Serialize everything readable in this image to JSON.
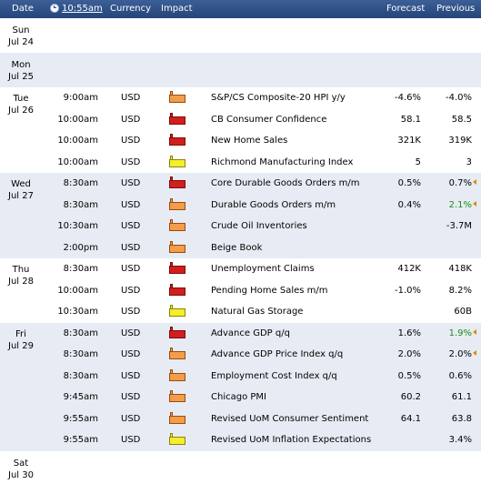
{
  "header": {
    "date": "Date",
    "time": "10:55am",
    "currency": "Currency",
    "impact": "Impact",
    "forecast": "Forecast",
    "previous": "Previous"
  },
  "days": [
    {
      "dow": "Sun",
      "date": "Jul 24",
      "events": []
    },
    {
      "dow": "Mon",
      "date": "Jul 25",
      "events": []
    },
    {
      "dow": "Tue",
      "date": "Jul 26",
      "events": [
        {
          "time": "9:00am",
          "currency": "USD",
          "impact": "medium",
          "event": "S&P/CS Composite-20 HPI y/y",
          "forecast": "-4.6%",
          "previous": "-4.0%",
          "prev_status": ""
        },
        {
          "time": "10:00am",
          "currency": "USD",
          "impact": "high",
          "event": "CB Consumer Confidence",
          "forecast": "58.1",
          "previous": "58.5",
          "prev_status": ""
        },
        {
          "time": "10:00am",
          "currency": "USD",
          "impact": "high",
          "event": "New Home Sales",
          "forecast": "321K",
          "previous": "319K",
          "prev_status": ""
        },
        {
          "time": "10:00am",
          "currency": "USD",
          "impact": "low",
          "event": "Richmond Manufacturing Index",
          "forecast": "5",
          "previous": "3",
          "prev_status": ""
        }
      ]
    },
    {
      "dow": "Wed",
      "date": "Jul 27",
      "events": [
        {
          "time": "8:30am",
          "currency": "USD",
          "impact": "high",
          "event": "Core Durable Goods Orders m/m",
          "forecast": "0.5%",
          "previous": "0.7%",
          "prev_status": "revised"
        },
        {
          "time": "8:30am",
          "currency": "USD",
          "impact": "medium",
          "event": "Durable Goods Orders m/m",
          "forecast": "0.4%",
          "previous": "2.1%",
          "prev_status": "revised-up"
        },
        {
          "time": "10:30am",
          "currency": "USD",
          "impact": "medium",
          "event": "Crude Oil Inventories",
          "forecast": "",
          "previous": "-3.7M",
          "prev_status": ""
        },
        {
          "time": "2:00pm",
          "currency": "USD",
          "impact": "medium",
          "event": "Beige Book",
          "forecast": "",
          "previous": "",
          "prev_status": ""
        }
      ]
    },
    {
      "dow": "Thu",
      "date": "Jul 28",
      "events": [
        {
          "time": "8:30am",
          "currency": "USD",
          "impact": "high",
          "event": "Unemployment Claims",
          "forecast": "412K",
          "previous": "418K",
          "prev_status": ""
        },
        {
          "time": "10:00am",
          "currency": "USD",
          "impact": "high",
          "event": "Pending Home Sales m/m",
          "forecast": "-1.0%",
          "previous": "8.2%",
          "prev_status": ""
        },
        {
          "time": "10:30am",
          "currency": "USD",
          "impact": "low",
          "event": "Natural Gas Storage",
          "forecast": "",
          "previous": "60B",
          "prev_status": ""
        }
      ]
    },
    {
      "dow": "Fri",
      "date": "Jul 29",
      "events": [
        {
          "time": "8:30am",
          "currency": "USD",
          "impact": "high",
          "event": "Advance GDP q/q",
          "forecast": "1.6%",
          "previous": "1.9%",
          "prev_status": "revised-up"
        },
        {
          "time": "8:30am",
          "currency": "USD",
          "impact": "medium",
          "event": "Advance GDP Price Index q/q",
          "forecast": "2.0%",
          "previous": "2.0%",
          "prev_status": "revised"
        },
        {
          "time": "8:30am",
          "currency": "USD",
          "impact": "medium",
          "event": "Employment Cost Index q/q",
          "forecast": "0.5%",
          "previous": "0.6%",
          "prev_status": ""
        },
        {
          "time": "9:45am",
          "currency": "USD",
          "impact": "medium",
          "event": "Chicago PMI",
          "forecast": "60.2",
          "previous": "61.1",
          "prev_status": ""
        },
        {
          "time": "9:55am",
          "currency": "USD",
          "impact": "medium",
          "event": "Revised UoM Consumer Sentiment",
          "forecast": "64.1",
          "previous": "63.8",
          "prev_status": ""
        },
        {
          "time": "9:55am",
          "currency": "USD",
          "impact": "low",
          "event": "Revised UoM Inflation Expectations",
          "forecast": "",
          "previous": "3.4%",
          "prev_status": ""
        }
      ]
    },
    {
      "dow": "Sat",
      "date": "Jul 30",
      "events": []
    }
  ],
  "colors": {
    "header_bg": "#2e4f86",
    "shade_row": "#e7ecf4",
    "impact_high": "#d21e1e",
    "impact_medium": "#f39c4a",
    "impact_low": "#f5ee2a",
    "better_than_expected": "#1a8c1a",
    "revision_marker": "#e08a00"
  }
}
